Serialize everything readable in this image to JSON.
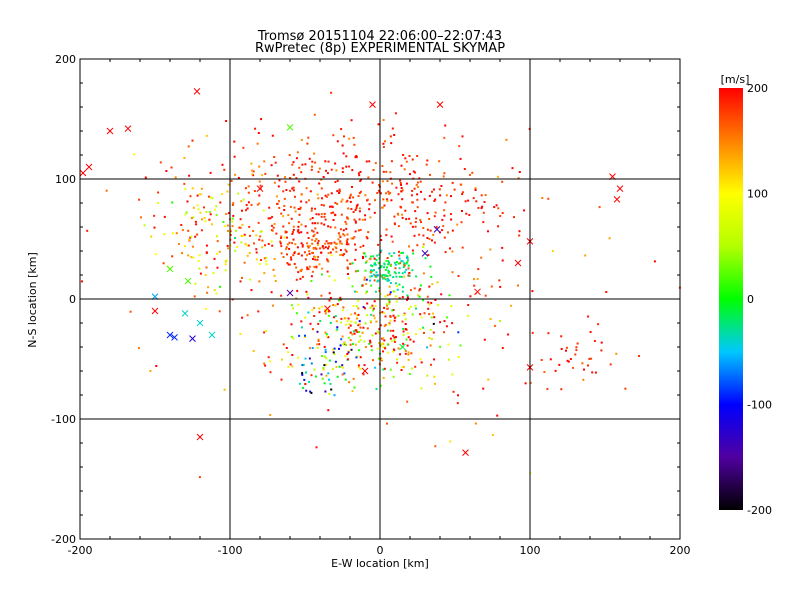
{
  "chart_data": {
    "type": "scatter",
    "title": "Tromsø 20151104 22:06:00–22:07:43",
    "subtitle": "RwPretec (8p) EXPERIMENTAL SKYMAP",
    "xlabel": "E-W location [km]",
    "ylabel": "N-S location [km]",
    "xlim": [
      -200,
      200
    ],
    "ylim": [
      -200,
      200
    ],
    "xticks": [
      "-200",
      "-100",
      "0",
      "100",
      "200"
    ],
    "yticks": [
      "-200",
      "-100",
      "0",
      "100",
      "200"
    ],
    "grid": true,
    "colorbar": {
      "label": "[m/s]",
      "range": [
        -200,
        200
      ],
      "ticks": [
        "-200",
        "-100",
        "0",
        "100",
        "200"
      ],
      "colormap": "rainbow"
    },
    "clusters": [
      {
        "cx": -15,
        "cy": 80,
        "sx": 55,
        "sy": 28,
        "n": 520,
        "vmean": 185,
        "vsd": 20
      },
      {
        "cx": -45,
        "cy": 45,
        "sx": 18,
        "sy": 14,
        "n": 160,
        "vmean": 175,
        "vsd": 25
      },
      {
        "cx": 5,
        "cy": 25,
        "sx": 10,
        "sy": 8,
        "n": 120,
        "vmean": -20,
        "vsd": 20
      },
      {
        "cx": -5,
        "cy": -25,
        "sx": 28,
        "sy": 22,
        "n": 380,
        "vmean": 130,
        "vsd": 95
      },
      {
        "cx": -110,
        "cy": 55,
        "sx": 22,
        "sy": 30,
        "n": 130,
        "vmean": 110,
        "vsd": 45
      },
      {
        "cx": 130,
        "cy": -50,
        "sx": 14,
        "sy": 14,
        "n": 35,
        "vmean": 185,
        "vsd": 15
      },
      {
        "cx": -40,
        "cy": -55,
        "sx": 15,
        "sy": 12,
        "n": 60,
        "vmean": -60,
        "vsd": 90
      },
      {
        "cx": 0,
        "cy": 0,
        "sx": 100,
        "sy": 70,
        "n": 140,
        "vmean": 170,
        "vsd": 40
      }
    ],
    "x_markers": [
      {
        "x": -122,
        "y": 173,
        "v": 200
      },
      {
        "x": -180,
        "y": 140,
        "v": 200
      },
      {
        "x": -168,
        "y": 142,
        "v": 200
      },
      {
        "x": -194,
        "y": 110,
        "v": 200
      },
      {
        "x": -198,
        "y": 105,
        "v": 200
      },
      {
        "x": -120,
        "y": -115,
        "v": 200
      },
      {
        "x": -140,
        "y": -30,
        "v": -90
      },
      {
        "x": -137,
        "y": -32,
        "v": -90
      },
      {
        "x": -125,
        "y": -33,
        "v": -120
      },
      {
        "x": -120,
        "y": -20,
        "v": -40
      },
      {
        "x": -112,
        "y": -30,
        "v": -40
      },
      {
        "x": -140,
        "y": 25,
        "v": 20
      },
      {
        "x": -150,
        "y": 2,
        "v": -60
      },
      {
        "x": -128,
        "y": 15,
        "v": 20
      },
      {
        "x": -60,
        "y": 143,
        "v": 20
      },
      {
        "x": 57,
        "y": -128,
        "v": 200
      },
      {
        "x": 155,
        "y": 102,
        "v": 200
      },
      {
        "x": 160,
        "y": 92,
        "v": 200
      },
      {
        "x": 158,
        "y": 83,
        "v": 200
      },
      {
        "x": 100,
        "y": -57,
        "v": 200
      },
      {
        "x": 100,
        "y": 48,
        "v": 200
      },
      {
        "x": 92,
        "y": 30,
        "v": 200
      },
      {
        "x": 40,
        "y": 162,
        "v": 200
      },
      {
        "x": -5,
        "y": 162,
        "v": 200
      },
      {
        "x": -10,
        "y": -60,
        "v": 200
      },
      {
        "x": 65,
        "y": 6,
        "v": 200
      },
      {
        "x": -35,
        "y": -8,
        "v": 200
      },
      {
        "x": -80,
        "y": 92,
        "v": 200
      },
      {
        "x": -60,
        "y": 5,
        "v": -150
      },
      {
        "x": 15,
        "y": -40,
        "v": -10
      },
      {
        "x": 38,
        "y": 58,
        "v": -140
      },
      {
        "x": 30,
        "y": 38,
        "v": -140
      },
      {
        "x": -130,
        "y": -12,
        "v": -40
      },
      {
        "x": -150,
        "y": -10,
        "v": 200
      }
    ]
  }
}
